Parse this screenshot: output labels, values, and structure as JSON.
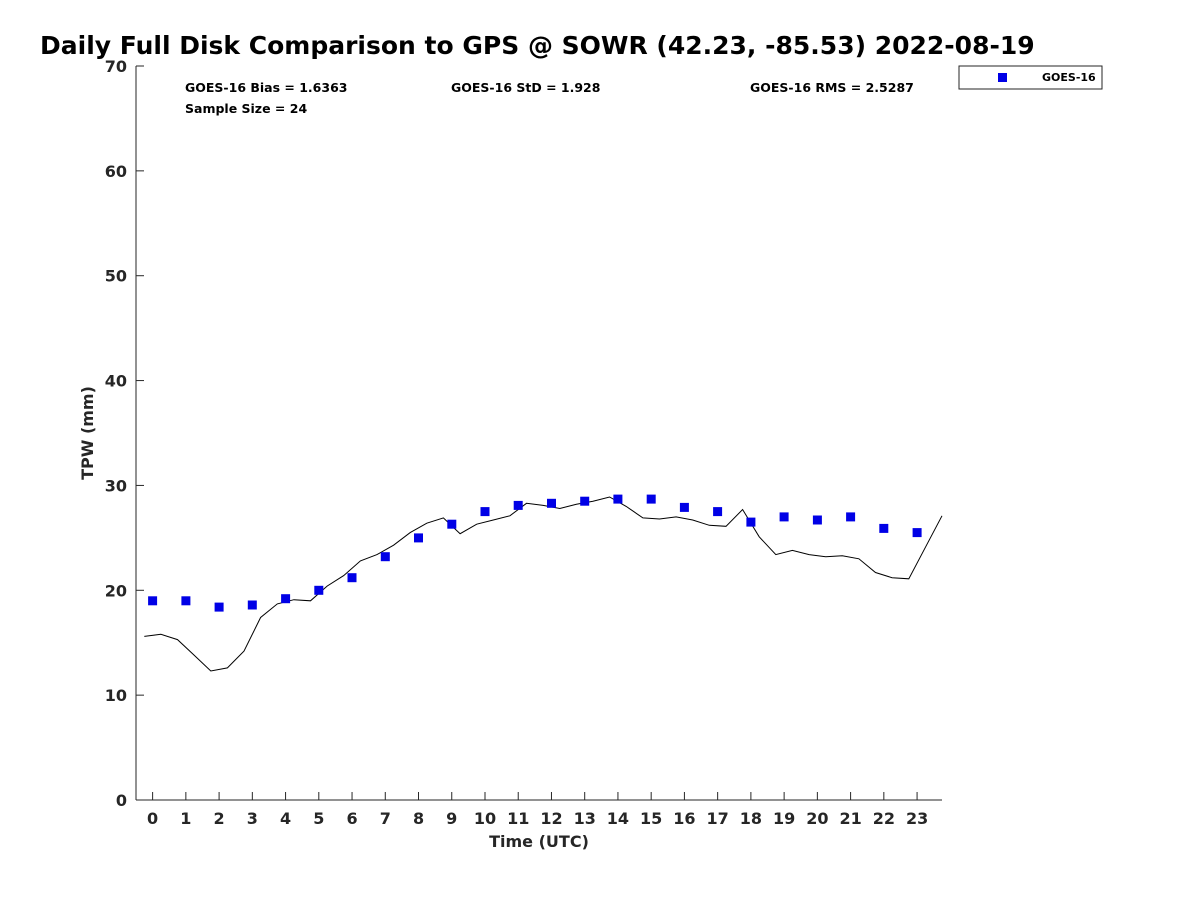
{
  "title": "Daily Full Disk Comparison to GPS @ SOWR (42.23, -85.53) 2022-08-19",
  "stats": {
    "bias": "GOES-16 Bias = 1.6363",
    "std": "GOES-16 StD = 1.928",
    "rms": "GOES-16 RMS = 2.5287",
    "sample": "Sample Size = 24"
  },
  "legend": {
    "label": "GOES-16"
  },
  "colors": {
    "goes": "#0000e6",
    "gps": "#000000",
    "axis": "#262626"
  },
  "chart_data": {
    "type": "scatter",
    "title": "Daily Full Disk Comparison to GPS @ SOWR (42.23, -85.53) 2022-08-19",
    "xlabel": "Time (UTC)",
    "ylabel": "TPW (mm)",
    "xlim": [
      -0.5,
      23.75
    ],
    "ylim": [
      0,
      70
    ],
    "xticks": [
      0,
      1,
      2,
      3,
      4,
      5,
      6,
      7,
      8,
      9,
      10,
      11,
      12,
      13,
      14,
      15,
      16,
      17,
      18,
      19,
      20,
      21,
      22,
      23
    ],
    "yticks": [
      0,
      10,
      20,
      30,
      40,
      50,
      60,
      70
    ],
    "grid": false,
    "legend_position": "outside-top-right",
    "series": [
      {
        "name": "GOES-16",
        "marker": "square",
        "x": [
          0,
          1,
          2,
          3,
          4,
          5,
          6,
          7,
          8,
          9,
          10,
          11,
          12,
          13,
          14,
          15,
          16,
          17,
          18,
          19,
          20,
          21,
          22,
          23
        ],
        "y": [
          19.0,
          19.0,
          18.4,
          18.6,
          19.2,
          20.0,
          21.2,
          23.2,
          25.0,
          26.3,
          27.5,
          28.1,
          28.3,
          28.5,
          28.7,
          28.7,
          27.9,
          27.5,
          26.5,
          27.0,
          26.7,
          27.0,
          25.9,
          25.5
        ]
      },
      {
        "marker": "line",
        "x": [
          -0.25,
          0.25,
          0.75,
          1.25,
          1.75,
          2.25,
          2.75,
          3.25,
          3.75,
          4.25,
          4.75,
          5.25,
          5.75,
          6.25,
          6.75,
          7.25,
          7.75,
          8.25,
          8.75,
          9.25,
          9.75,
          10.25,
          10.75,
          11.25,
          11.75,
          12.25,
          12.75,
          13.25,
          13.75,
          14.25,
          14.75,
          15.25,
          15.75,
          16.25,
          16.75,
          17.25,
          17.75,
          18.25,
          18.75,
          19.25,
          19.75,
          20.25,
          20.75,
          21.25,
          21.75,
          22.25,
          22.75,
          23.25,
          23.75
        ],
        "y": [
          15.6,
          15.8,
          15.3,
          13.8,
          12.3,
          12.6,
          14.2,
          17.4,
          18.7,
          19.1,
          19.0,
          20.4,
          21.4,
          22.8,
          23.4,
          24.3,
          25.5,
          26.4,
          26.9,
          25.4,
          26.3,
          26.7,
          27.1,
          28.3,
          28.1,
          27.8,
          28.2,
          28.5,
          28.9,
          28.0,
          26.9,
          26.8,
          27.0,
          26.7,
          26.2,
          26.1,
          27.7,
          25.1,
          23.4,
          23.8,
          23.4,
          23.2,
          23.3,
          23.0,
          21.7,
          21.2,
          21.1,
          24.1,
          27.1
        ]
      }
    ]
  }
}
